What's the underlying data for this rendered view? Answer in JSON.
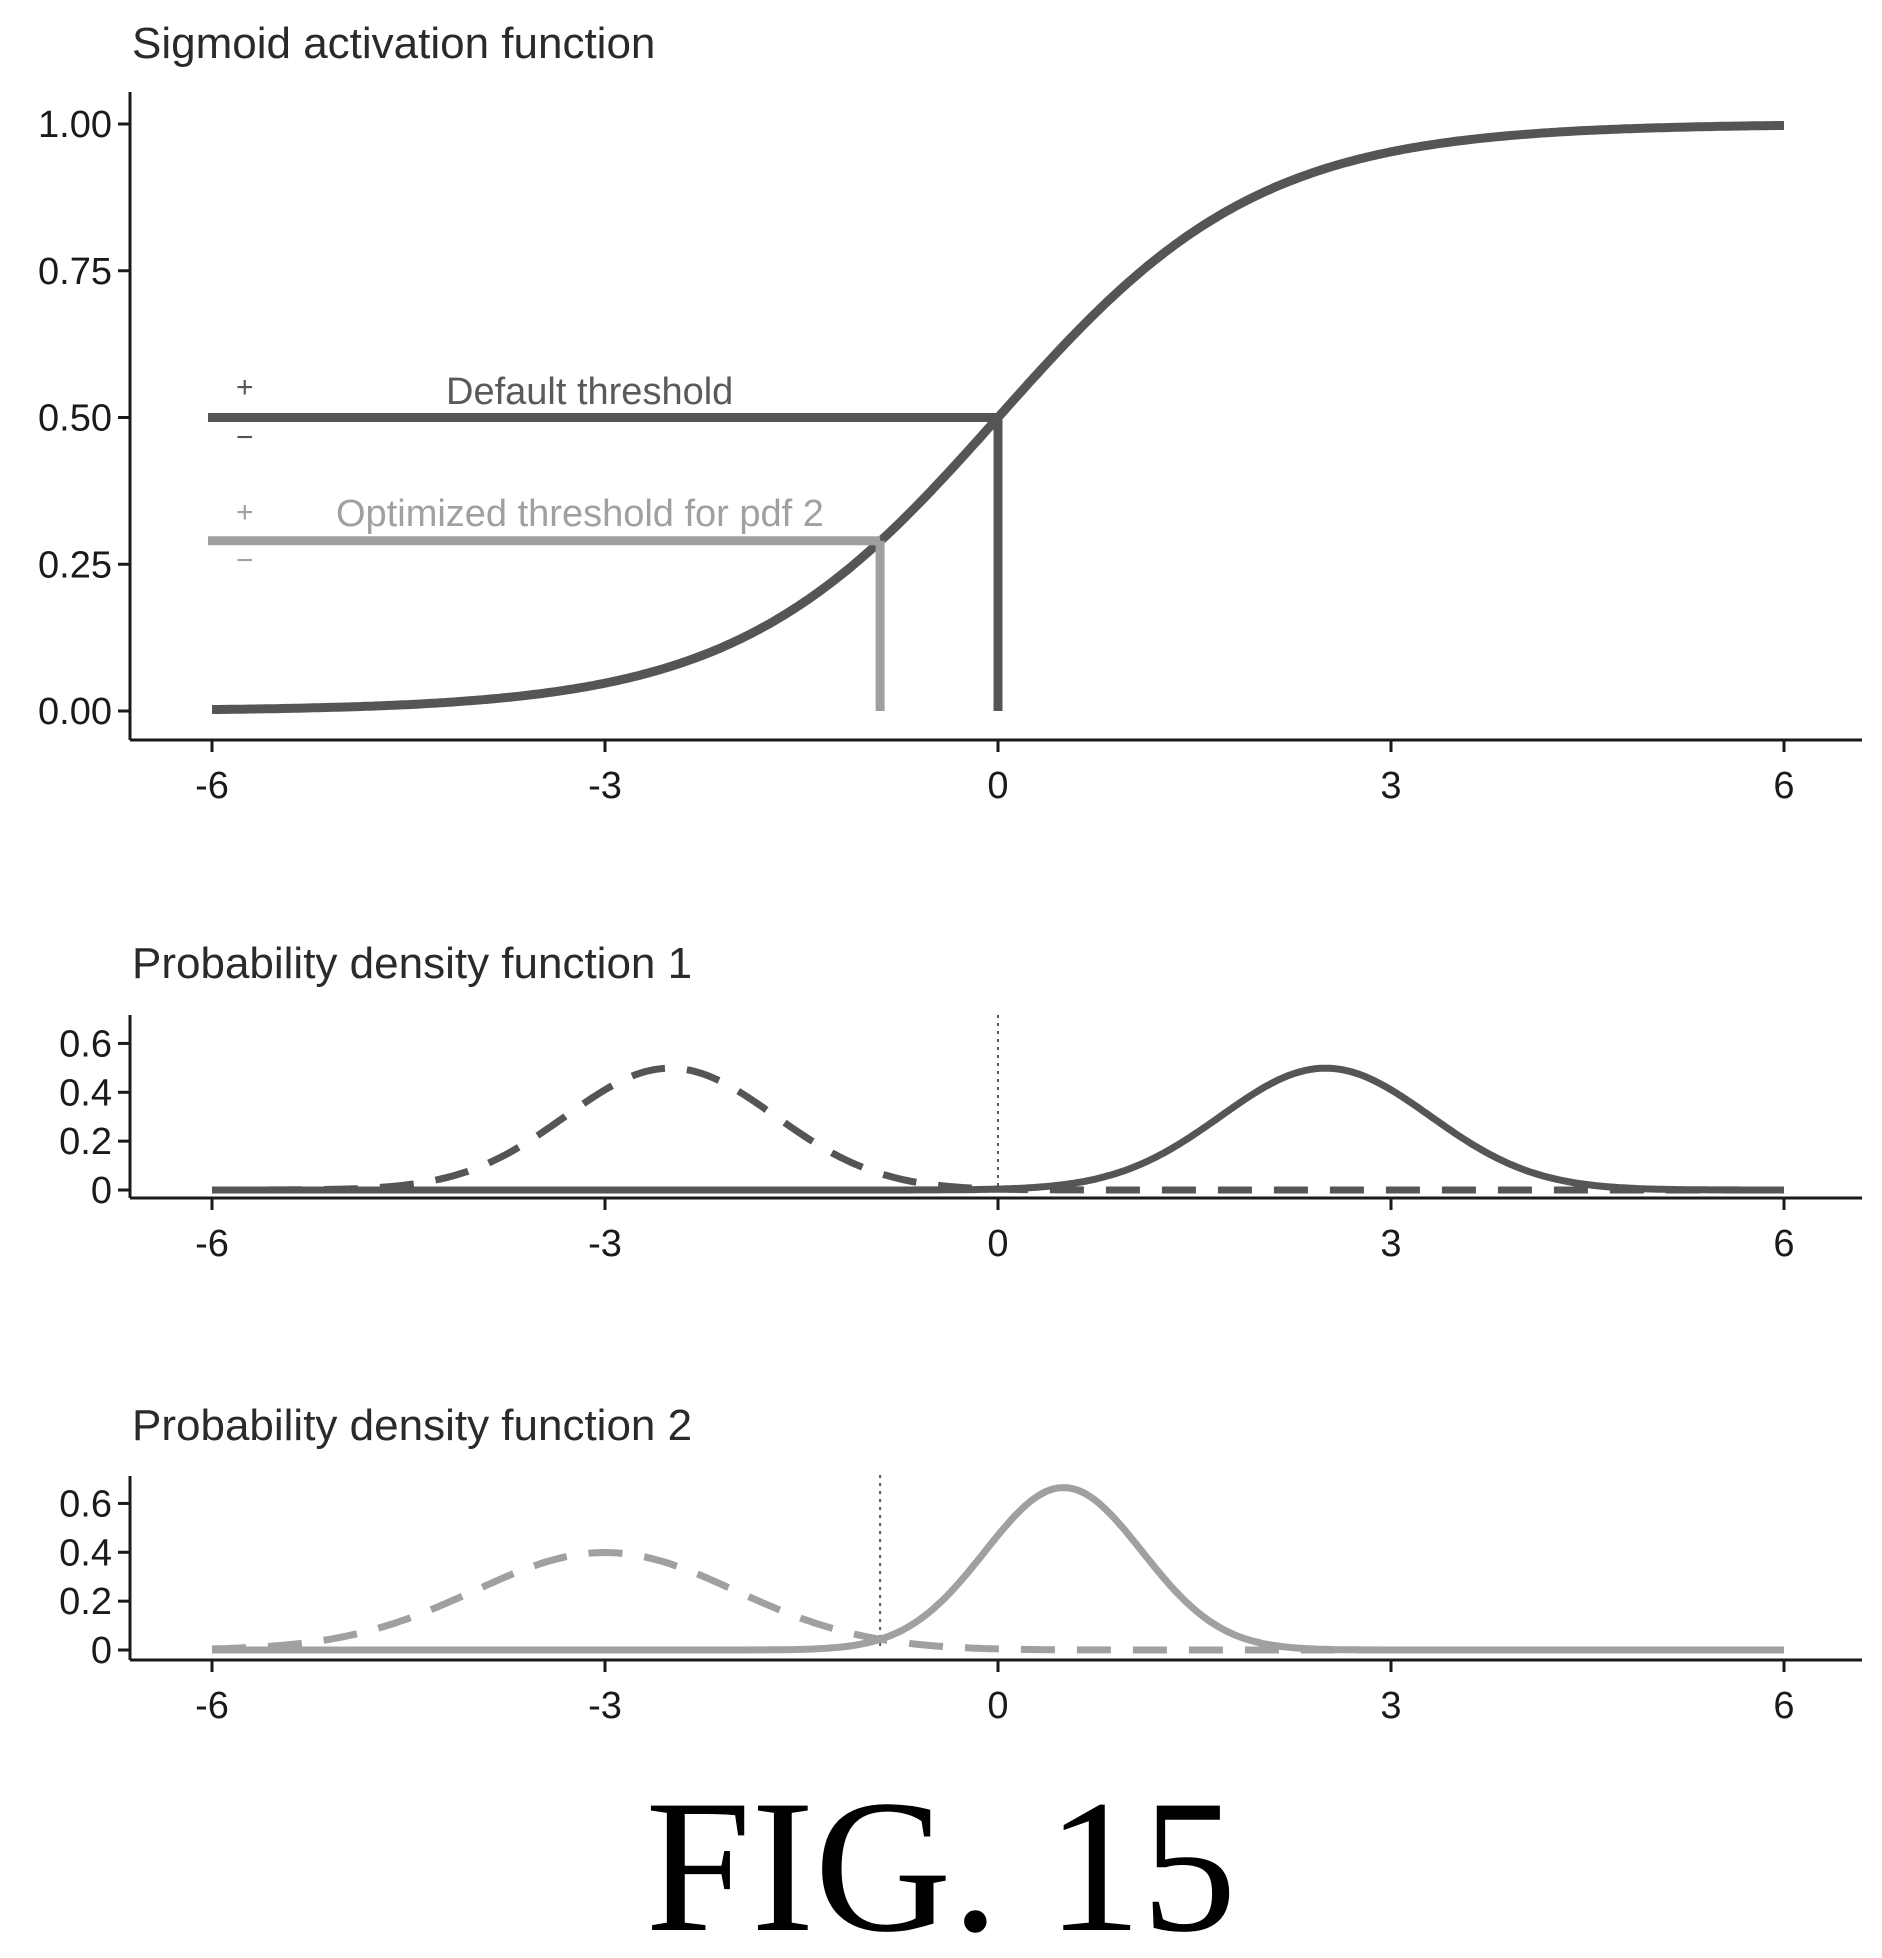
{
  "figure_caption": "FIG. 15",
  "colors": {
    "dark": "#555555",
    "light": "#a0a0a0",
    "axis": "#1a1a1a"
  },
  "chart_data": [
    {
      "type": "line",
      "title": "Sigmoid activation function",
      "xlabel": "",
      "ylabel": "",
      "xlim": [
        -6,
        6
      ],
      "ylim": [
        0,
        1
      ],
      "x_ticks": [
        -6,
        -3,
        0,
        3,
        6
      ],
      "x_tick_labels": [
        "-6",
        "-3",
        "0",
        "3",
        "6"
      ],
      "y_ticks": [
        0,
        0.25,
        0.5,
        0.75,
        1.0
      ],
      "y_tick_labels": [
        "0.00",
        "0.25",
        "0.50",
        "0.75",
        "1.00"
      ],
      "series": [
        {
          "function": "sigmoid",
          "x_range": [
            -6,
            6
          ],
          "color": "dark",
          "style": "solid"
        }
      ],
      "thresholds": [
        {
          "label": "Default threshold",
          "y": 0.5,
          "x": 0,
          "color": "dark",
          "plus": "+",
          "minus": "−"
        },
        {
          "label": "Optimized threshold for pdf 2",
          "y": 0.29,
          "x": -0.9,
          "color": "light",
          "plus": "+",
          "minus": "−"
        }
      ],
      "grid": false,
      "legend": "none"
    },
    {
      "type": "line",
      "title": "Probability density function 1",
      "xlabel": "",
      "ylabel": "",
      "xlim": [
        -6,
        6
      ],
      "ylim": [
        0,
        0.7
      ],
      "x_ticks": [
        -6,
        -3,
        0,
        3,
        6
      ],
      "x_tick_labels": [
        "-6",
        "-3",
        "0",
        "3",
        "6"
      ],
      "y_ticks": [
        0,
        0.2,
        0.4,
        0.6
      ],
      "y_tick_labels": [
        "0",
        "0.2",
        "0.4",
        "0.6"
      ],
      "threshold_x": 0,
      "series": [
        {
          "function": "normal",
          "mean": -2.5,
          "sd": 0.8,
          "x_range": [
            -6,
            6
          ],
          "color": "dark",
          "style": "dashed"
        },
        {
          "function": "normal",
          "mean": 2.5,
          "sd": 0.8,
          "x_range": [
            -6,
            6
          ],
          "color": "dark",
          "style": "solid"
        }
      ],
      "grid": false,
      "legend": "none"
    },
    {
      "type": "line",
      "title": "Probability density function 2",
      "xlabel": "",
      "ylabel": "",
      "xlim": [
        -6,
        6
      ],
      "ylim": [
        0,
        0.7
      ],
      "x_ticks": [
        -6,
        -3,
        0,
        3,
        6
      ],
      "x_tick_labels": [
        "-6",
        "-3",
        "0",
        "3",
        "6"
      ],
      "y_ticks": [
        0,
        0.2,
        0.4,
        0.6
      ],
      "y_tick_labels": [
        "0",
        "0.2",
        "0.4",
        "0.6"
      ],
      "threshold_x": -0.9,
      "series": [
        {
          "function": "normal",
          "mean": -3.0,
          "sd": 1.0,
          "x_range": [
            -6,
            6
          ],
          "color": "light",
          "style": "dashed"
        },
        {
          "function": "normal",
          "mean": 0.5,
          "sd": 0.6,
          "x_range": [
            -6,
            6
          ],
          "color": "light",
          "style": "solid"
        }
      ],
      "grid": false,
      "legend": "none"
    }
  ]
}
